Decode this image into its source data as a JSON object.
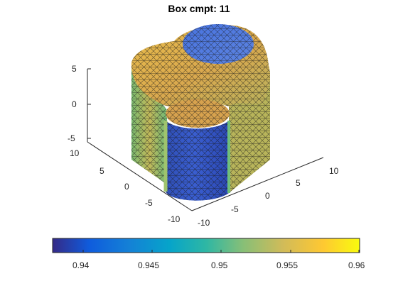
{
  "figure": {
    "title": "Box cmpt: 11"
  },
  "axes": {
    "z_ticks": [
      "5",
      "0",
      "-5"
    ],
    "y_ticks": [
      "10",
      "5",
      "0",
      "-5",
      "-10"
    ],
    "x_ticks": [
      "-10",
      "-5",
      "0",
      "5",
      "10"
    ]
  },
  "colorbar": {
    "ticks": [
      "0.94",
      "0.945",
      "0.95",
      "0.955",
      "0.96"
    ],
    "colormap": "parula",
    "colors": [
      "#352a87",
      "#0f5cdd",
      "#1481d6",
      "#06a4ca",
      "#2eb7a4",
      "#87bf77",
      "#d1bb59",
      "#fec832",
      "#f9fb0e"
    ]
  },
  "chart_data": {
    "type": "heatmap",
    "title": "Box cmpt: 11",
    "value_range": [
      0.938,
      0.96
    ],
    "z_range": [
      -7,
      7
    ],
    "y_range": [
      -10,
      10
    ],
    "x_range": [
      -10,
      10
    ],
    "colorbar_ticks": [
      0.94,
      0.945,
      0.95,
      0.955,
      0.96
    ]
  }
}
